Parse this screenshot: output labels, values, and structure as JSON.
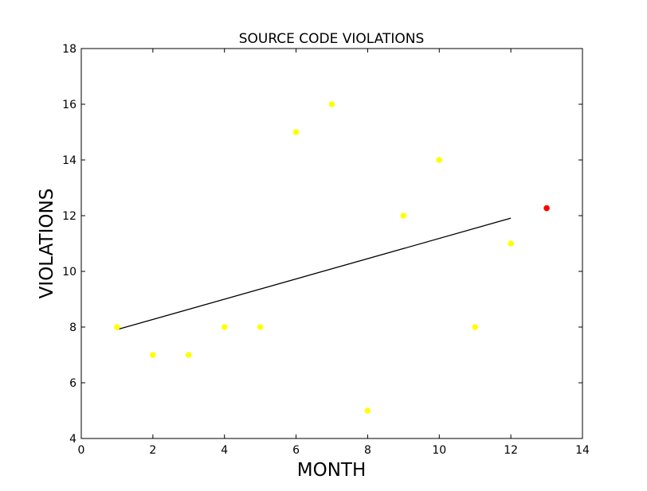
{
  "chart_data": {
    "type": "scatter",
    "title": "SOURCE CODE VIOLATIONS",
    "xlabel": "MONTH",
    "ylabel": "VIOLATIONS",
    "xlim": [
      0,
      14
    ],
    "ylim": [
      4,
      18
    ],
    "xticks": [
      0,
      2,
      4,
      6,
      8,
      10,
      12,
      14
    ],
    "yticks": [
      4,
      6,
      8,
      10,
      12,
      14,
      16,
      18
    ],
    "grid": false,
    "colors": {
      "points": "#ffff00",
      "prediction": "#ff0000",
      "trend": "#000000"
    },
    "series": [
      {
        "kind": "points",
        "x": [
          1,
          2,
          3,
          4,
          5,
          6,
          7,
          8,
          9,
          10,
          11,
          12
        ],
        "y": [
          8,
          7,
          7,
          8,
          8,
          15,
          16,
          5,
          12,
          14,
          8,
          11
        ]
      },
      {
        "kind": "prediction",
        "x": [
          13
        ],
        "y": [
          12.27
        ]
      },
      {
        "kind": "trend",
        "x": [
          1,
          12
        ],
        "y": [
          7.91,
          11.91
        ]
      }
    ]
  }
}
